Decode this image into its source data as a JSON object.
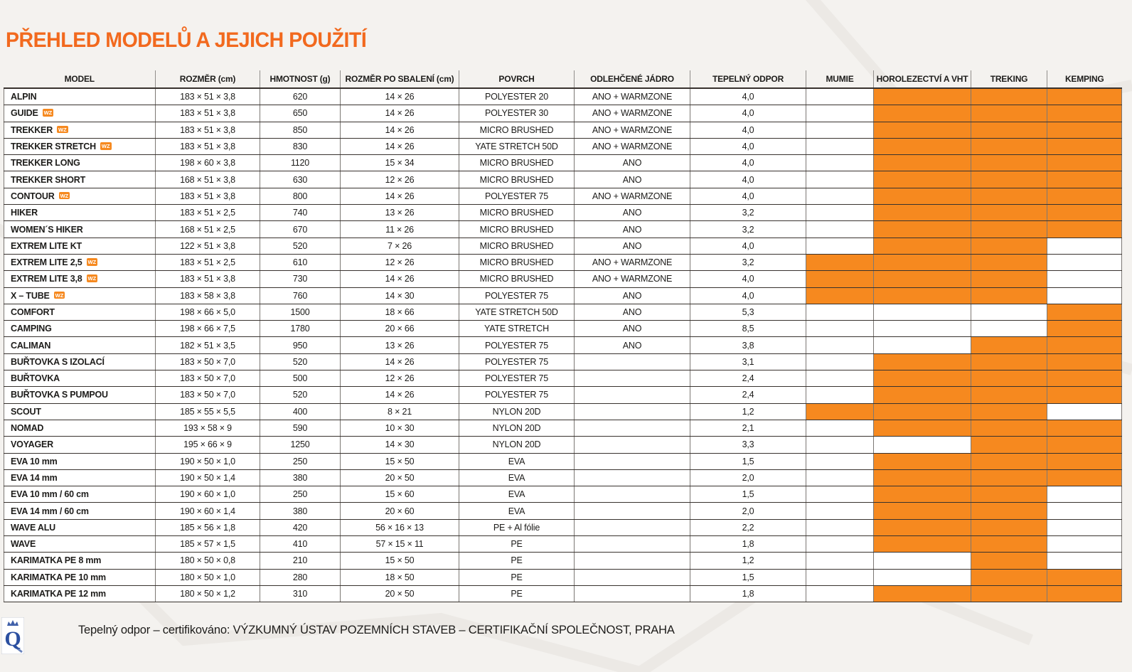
{
  "page": {
    "title": "PŘEHLED MODELŮ A JEJICH POUŽITÍ"
  },
  "colors": {
    "accent_orange": "#f6891f",
    "title_orange": "#f2691e",
    "border_dark": "#38322e",
    "logo_blue": "#2b4fa0",
    "page_background": "#f4f2ef"
  },
  "table": {
    "columns": [
      {
        "key": "model",
        "label": "MODEL"
      },
      {
        "key": "rozmer",
        "label": "ROZMĚR (cm)"
      },
      {
        "key": "hmotnost",
        "label": "HMOTNOST (g)"
      },
      {
        "key": "sbaleni",
        "label": "ROZMĚR PO SBALENÍ (cm)"
      },
      {
        "key": "povrch",
        "label": "POVRCH"
      },
      {
        "key": "jadro",
        "label": "ODLEHČENÉ JÁDRO"
      },
      {
        "key": "odpor",
        "label": "TEPELNÝ ODPOR"
      },
      {
        "key": "mumie",
        "label": "MUMIE"
      },
      {
        "key": "horolezectvi",
        "label": "HOROLEZECTVÍ A VHT"
      },
      {
        "key": "treking",
        "label": "TREKING"
      },
      {
        "key": "kemping",
        "label": "KEMPING"
      }
    ],
    "use_column_keys": [
      "mumie",
      "horolezectvi-vht",
      "treking",
      "kemping"
    ],
    "wz_badge_label": "WZ",
    "rows": [
      {
        "model": "ALPIN",
        "wz": false,
        "rozmer": "183 × 51 × 3,8",
        "hmotnost": "620",
        "sbaleni": "14 × 26",
        "povrch": "POLYESTER 20",
        "jadro": "ANO + WARMZONE",
        "odpor": "4,0",
        "use": [
          0,
          1,
          1,
          1
        ]
      },
      {
        "model": "GUIDE",
        "wz": true,
        "rozmer": "183 × 51 × 3,8",
        "hmotnost": "650",
        "sbaleni": "14 × 26",
        "povrch": "POLYESTER 30",
        "jadro": "ANO + WARMZONE",
        "odpor": "4,0",
        "use": [
          0,
          1,
          1,
          1
        ]
      },
      {
        "model": "TREKKER",
        "wz": true,
        "rozmer": "183 × 51 × 3,8",
        "hmotnost": "850",
        "sbaleni": "14 × 26",
        "povrch": "MICRO BRUSHED",
        "jadro": "ANO + WARMZONE",
        "odpor": "4,0",
        "use": [
          0,
          1,
          1,
          1
        ]
      },
      {
        "model": "TREKKER STRETCH",
        "wz": true,
        "rozmer": "183 × 51 × 3,8",
        "hmotnost": "830",
        "sbaleni": "14 × 26",
        "povrch": "YATE STRETCH 50D",
        "jadro": "ANO + WARMZONE",
        "odpor": "4,0",
        "use": [
          0,
          1,
          1,
          1
        ]
      },
      {
        "model": "TREKKER LONG",
        "wz": false,
        "rozmer": "198 × 60 × 3,8",
        "hmotnost": "1120",
        "sbaleni": "15 × 34",
        "povrch": "MICRO BRUSHED",
        "jadro": "ANO",
        "odpor": "4,0",
        "use": [
          0,
          1,
          1,
          1
        ]
      },
      {
        "model": "TREKKER SHORT",
        "wz": false,
        "rozmer": "168 × 51 × 3,8",
        "hmotnost": "630",
        "sbaleni": "12 × 26",
        "povrch": "MICRO BRUSHED",
        "jadro": "ANO",
        "odpor": "4,0",
        "use": [
          0,
          1,
          1,
          1
        ]
      },
      {
        "model": "CONTOUR",
        "wz": true,
        "rozmer": "183 × 51 × 3,8",
        "hmotnost": "800",
        "sbaleni": "14 × 26",
        "povrch": "POLYESTER 75",
        "jadro": "ANO + WARMZONE",
        "odpor": "4,0",
        "use": [
          0,
          1,
          1,
          1
        ]
      },
      {
        "model": "HIKER",
        "wz": false,
        "rozmer": "183 × 51 × 2,5",
        "hmotnost": "740",
        "sbaleni": "13 × 26",
        "povrch": "MICRO BRUSHED",
        "jadro": "ANO",
        "odpor": "3,2",
        "use": [
          0,
          1,
          1,
          1
        ]
      },
      {
        "model": "WOMEN´S HIKER",
        "wz": false,
        "rozmer": "168 × 51 × 2,5",
        "hmotnost": "670",
        "sbaleni": "11 × 26",
        "povrch": "MICRO BRUSHED",
        "jadro": "ANO",
        "odpor": "3,2",
        "use": [
          0,
          1,
          1,
          1
        ]
      },
      {
        "model": "EXTREM LITE KT",
        "wz": false,
        "rozmer": "122 × 51 × 3,8",
        "hmotnost": "520",
        "sbaleni": "7 × 26",
        "povrch": "MICRO BRUSHED",
        "jadro": "ANO",
        "odpor": "4,0",
        "use": [
          0,
          1,
          1,
          0
        ]
      },
      {
        "model": "EXTREM LITE 2,5",
        "wz": true,
        "rozmer": "183 × 51 × 2,5",
        "hmotnost": "610",
        "sbaleni": "12 × 26",
        "povrch": "MICRO BRUSHED",
        "jadro": "ANO + WARMZONE",
        "odpor": "3,2",
        "use": [
          1,
          1,
          1,
          0
        ]
      },
      {
        "model": "EXTREM LITE 3,8",
        "wz": true,
        "rozmer": "183 × 51 × 3,8",
        "hmotnost": "730",
        "sbaleni": "14 × 26",
        "povrch": "MICRO BRUSHED",
        "jadro": "ANO + WARMZONE",
        "odpor": "4,0",
        "use": [
          1,
          1,
          1,
          0
        ]
      },
      {
        "model": "X – TUBE",
        "wz": true,
        "rozmer": "183 × 58 × 3,8",
        "hmotnost": "760",
        "sbaleni": "14 × 30",
        "povrch": "POLYESTER 75",
        "jadro": "ANO",
        "odpor": "4,0",
        "use": [
          1,
          1,
          1,
          0
        ]
      },
      {
        "model": "COMFORT",
        "wz": false,
        "rozmer": "198 × 66 × 5,0",
        "hmotnost": "1500",
        "sbaleni": "18 × 66",
        "povrch": "YATE STRETCH 50D",
        "jadro": "ANO",
        "odpor": "5,3",
        "use": [
          0,
          0,
          0,
          1
        ]
      },
      {
        "model": "CAMPING",
        "wz": false,
        "rozmer": "198 × 66 × 7,5",
        "hmotnost": "1780",
        "sbaleni": "20 × 66",
        "povrch": "YATE STRETCH",
        "jadro": "ANO",
        "odpor": "8,5",
        "use": [
          0,
          0,
          0,
          1
        ]
      },
      {
        "model": "CALIMAN",
        "wz": false,
        "rozmer": "182 × 51 × 3,5",
        "hmotnost": "950",
        "sbaleni": "13 × 26",
        "povrch": "POLYESTER 75",
        "jadro": "ANO",
        "odpor": "3,8",
        "use": [
          0,
          0,
          1,
          1
        ]
      },
      {
        "model": "BUŘTOVKA S IZOLACÍ",
        "wz": false,
        "rozmer": "183 × 50 × 7,0",
        "hmotnost": "520",
        "sbaleni": "14 × 26",
        "povrch": "POLYESTER 75",
        "jadro": "",
        "odpor": "3,1",
        "use": [
          0,
          1,
          1,
          1
        ]
      },
      {
        "model": "BUŘTOVKA",
        "wz": false,
        "rozmer": "183 × 50 × 7,0",
        "hmotnost": "500",
        "sbaleni": "12 × 26",
        "povrch": "POLYESTER 75",
        "jadro": "",
        "odpor": "2,4",
        "use": [
          0,
          1,
          1,
          1
        ]
      },
      {
        "model": "BUŘTOVKA S PUMPOU",
        "wz": false,
        "rozmer": "183 × 50 × 7,0",
        "hmotnost": "520",
        "sbaleni": "14 × 26",
        "povrch": "POLYESTER 75",
        "jadro": "",
        "odpor": "2,4",
        "use": [
          0,
          1,
          1,
          1
        ]
      },
      {
        "model": "SCOUT",
        "wz": false,
        "rozmer": "185 × 55 × 5,5",
        "hmotnost": "400",
        "sbaleni": "8 × 21",
        "povrch": "NYLON 20D",
        "jadro": "",
        "odpor": "1,2",
        "use": [
          1,
          1,
          1,
          0
        ]
      },
      {
        "model": "NOMAD",
        "wz": false,
        "rozmer": "193 × 58 × 9",
        "hmotnost": "590",
        "sbaleni": "10 × 30",
        "povrch": "NYLON 20D",
        "jadro": "",
        "odpor": "2,1",
        "use": [
          0,
          1,
          1,
          1
        ]
      },
      {
        "model": "VOYAGER",
        "wz": false,
        "rozmer": "195 × 66 × 9",
        "hmotnost": "1250",
        "sbaleni": "14 × 30",
        "povrch": "NYLON 20D",
        "jadro": "",
        "odpor": "3,3",
        "use": [
          0,
          0,
          1,
          1
        ]
      },
      {
        "model": "EVA 10 mm",
        "wz": false,
        "rozmer": "190 × 50 × 1,0",
        "hmotnost": "250",
        "sbaleni": "15 × 50",
        "povrch": "EVA",
        "jadro": "",
        "odpor": "1,5",
        "use": [
          0,
          1,
          1,
          1
        ]
      },
      {
        "model": "EVA 14 mm",
        "wz": false,
        "rozmer": "190 × 50 × 1,4",
        "hmotnost": "380",
        "sbaleni": "20 × 50",
        "povrch": "EVA",
        "jadro": "",
        "odpor": "2,0",
        "use": [
          0,
          1,
          1,
          1
        ]
      },
      {
        "model": "EVA 10 mm / 60 cm",
        "wz": false,
        "rozmer": "190 × 60 × 1,0",
        "hmotnost": "250",
        "sbaleni": "15 × 60",
        "povrch": "EVA",
        "jadro": "",
        "odpor": "1,5",
        "use": [
          0,
          1,
          1,
          0
        ]
      },
      {
        "model": "EVA 14 mm / 60 cm",
        "wz": false,
        "rozmer": "190 × 60 × 1,4",
        "hmotnost": "380",
        "sbaleni": "20 × 60",
        "povrch": "EVA",
        "jadro": "",
        "odpor": "2,0",
        "use": [
          0,
          1,
          1,
          0
        ]
      },
      {
        "model": "WAVE ALU",
        "wz": false,
        "rozmer": "185 × 56 × 1,8",
        "hmotnost": "420",
        "sbaleni": "56 × 16 × 13",
        "povrch": "PE + Al fólie",
        "jadro": "",
        "odpor": "2,2",
        "use": [
          0,
          1,
          1,
          0
        ]
      },
      {
        "model": "WAVE",
        "wz": false,
        "rozmer": "185 × 57 × 1,5",
        "hmotnost": "410",
        "sbaleni": "57 × 15 × 11",
        "povrch": "PE",
        "jadro": "",
        "odpor": "1,8",
        "use": [
          0,
          1,
          1,
          0
        ]
      },
      {
        "model": "KARIMATKA PE 8 mm",
        "wz": false,
        "rozmer": "180 × 50 × 0,8",
        "hmotnost": "210",
        "sbaleni": "15 × 50",
        "povrch": "PE",
        "jadro": "",
        "odpor": "1,2",
        "use": [
          0,
          0,
          1,
          0
        ]
      },
      {
        "model": "KARIMATKA PE 10 mm",
        "wz": false,
        "rozmer": "180 × 50 × 1,0",
        "hmotnost": "280",
        "sbaleni": "18 × 50",
        "povrch": "PE",
        "jadro": "",
        "odpor": "1,5",
        "use": [
          0,
          0,
          1,
          1
        ]
      },
      {
        "model": "KARIMATKA PE 12 mm",
        "wz": false,
        "rozmer": "180 × 50 × 1,2",
        "hmotnost": "310",
        "sbaleni": "20 × 50",
        "povrch": "PE",
        "jadro": "",
        "odpor": "1,8",
        "use": [
          0,
          1,
          1,
          1
        ]
      }
    ]
  },
  "footer": {
    "logo": "vups-certification-logo",
    "text": "Tepelný odpor – certifikováno: VÝZKUMNÝ ÚSTAV POZEMNÍCH STAVEB – CERTIFIKAČNÍ SPOLEČNOST, PRAHA"
  }
}
